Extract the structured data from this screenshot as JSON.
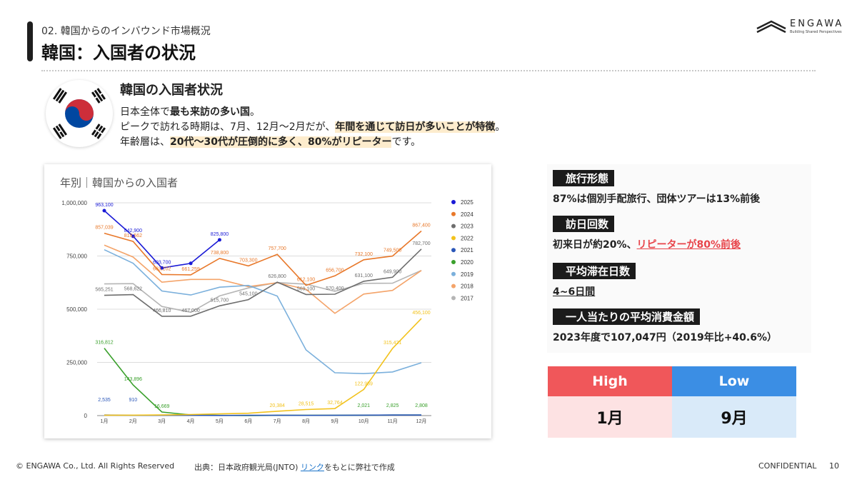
{
  "header": {
    "section": "02. 韓国からのインバウンド市場概況",
    "title": "韓国：入国者の状況",
    "logo_text": "ENGAWA",
    "logo_sub": "Building Shared Perspectives"
  },
  "intro": {
    "heading": "韓国の入国者状況",
    "line1_a": "日本全体で",
    "line1_b": "最も来訪の多い国",
    "line1_c": "。",
    "line2_a": "ピークで訪れる時期は、7月、12月〜2月だが、",
    "line2_b": "年間を通じて訪日が多いことが特徴",
    "line2_c": "。",
    "line3_a": "年齢層は、",
    "line3_b": "20代〜30代が圧倒的に多く、80%がリピーター",
    "line3_c": "です。"
  },
  "info": {
    "h1": "旅行形態",
    "t1": "87%は個別手配旅行、団体ツアーは13%前後",
    "h2": "訪日回数",
    "t2_a": "初来日が約20%、",
    "t2_b": "リピーターが80%前後",
    "h3": "平均滞在日数",
    "t3": "4~6日間",
    "h4": "一人当たりの平均消費金額",
    "t4": "2023年度で107,047円（2019年比+40.6%）"
  },
  "season": {
    "high_label": "High",
    "low_label": "Low",
    "high_value": "1月",
    "low_value": "9月"
  },
  "footer": {
    "copyright": "© ENGAWA Co., Ltd. All Rights Reserved",
    "source_a": "出典：日本政府観光局(JNTO) ",
    "source_link": "リンク",
    "source_b": "をもとに弊社で作成",
    "confidential": "CONFIDENTIAL",
    "page": "10"
  },
  "colors": {
    "high": "#f0575a",
    "low": "#3b8ee4",
    "flag_red": "#cd2e3a",
    "flag_blue": "#0047a0"
  },
  "chart_data": {
    "type": "line",
    "title": "年別｜韓国からの入国者",
    "categories": [
      "1月",
      "2月",
      "3月",
      "4月",
      "5月",
      "6月",
      "7月",
      "8月",
      "9月",
      "10月",
      "11月",
      "12月"
    ],
    "yticks": [
      "1,000,000",
      "750,000",
      "500,000",
      "250,000",
      "0"
    ],
    "ylim": [
      0,
      1000000
    ],
    "grid": true,
    "legend": "right",
    "series": [
      {
        "name": "2025",
        "color": "#1a1ad6",
        "values": [
          963100,
          842900,
          693700,
          715400,
          825800,
          null,
          null,
          null,
          null,
          null,
          null,
          null
        ],
        "labels": [
          "963,100",
          "842,900",
          "693,700",
          "",
          "825,800",
          "",
          "",
          "",
          "",
          "",
          "",
          ""
        ]
      },
      {
        "name": "2024",
        "color": "#e8782a",
        "values": [
          857039,
          818562,
          663102,
          661259,
          738800,
          703300,
          757700,
          612100,
          656700,
          732100,
          749500,
          867400
        ],
        "labels": [
          "857,039",
          "818,562",
          "663,102",
          "661,259",
          "738,800",
          "703,300",
          "757,700",
          "612,100",
          "656,700",
          "732,100",
          "749,500",
          "867,400"
        ]
      },
      {
        "name": "2023",
        "color": "#6e6e6e",
        "values": [
          565251,
          568622,
          466810,
          467000,
          515700,
          545100,
          626800,
          569100,
          570400,
          631100,
          649900,
          782700
        ],
        "labels": [
          "565,251",
          "568,622",
          "466,810",
          "467,000",
          "515,700",
          "545,100",
          "626,800",
          "569,100",
          "570,400",
          "631,100",
          "649,900",
          "782,700"
        ]
      },
      {
        "name": "2022",
        "color": "#f2c21c",
        "values": [
          2000,
          2000,
          3000,
          5000,
          8000,
          11000,
          20384,
          28515,
          32764,
          122959,
          315421,
          456100
        ],
        "labels": [
          "",
          "",
          "",
          "",
          "",
          "",
          "20,384",
          "28,515",
          "32,764",
          "122,959",
          "315,421",
          "456,100"
        ]
      },
      {
        "name": "2021",
        "color": "#2a56b8",
        "values": [
          2535,
          910,
          2000,
          1400,
          800,
          1500,
          1200,
          1000,
          1426,
          2021,
          2825,
          2808
        ],
        "labels": [
          "2,535",
          "910",
          "",
          "",
          "",
          "",
          "",
          "",
          "",
          "",
          "",
          ""
        ]
      },
      {
        "name": "2020",
        "color": "#3aa02c",
        "values": [
          316812,
          143896,
          16669,
          2995,
          1000,
          122,
          1200,
          1749,
          1426,
          2021,
          2825,
          2808
        ],
        "labels": [
          "316,812",
          "143,896",
          "16,669",
          "",
          "",
          "",
          "",
          "",
          "",
          "2,021",
          "2,825",
          "2,808"
        ]
      },
      {
        "name": "2019",
        "color": "#7bb0dc",
        "values": [
          779383,
          715804,
          585586,
          566624,
          603394,
          611889,
          561675,
          308730,
          201252,
          197281,
          205042,
          248314
        ],
        "labels": []
      },
      {
        "name": "2018",
        "color": "#f4a46a",
        "values": [
          801209,
          745030,
          626802,
          640027,
          640066,
          606044,
          624461,
          593460,
          480628,
          571237,
          588189,
          682036
        ],
        "labels": []
      },
      {
        "name": "2017",
        "color": "#b5b5b5",
        "values": [
          618924,
          620004,
          512702,
          485524,
          562530,
          600006,
          625106,
          617904,
          584346,
          621608,
          622232,
          682356
        ],
        "labels": []
      }
    ]
  }
}
